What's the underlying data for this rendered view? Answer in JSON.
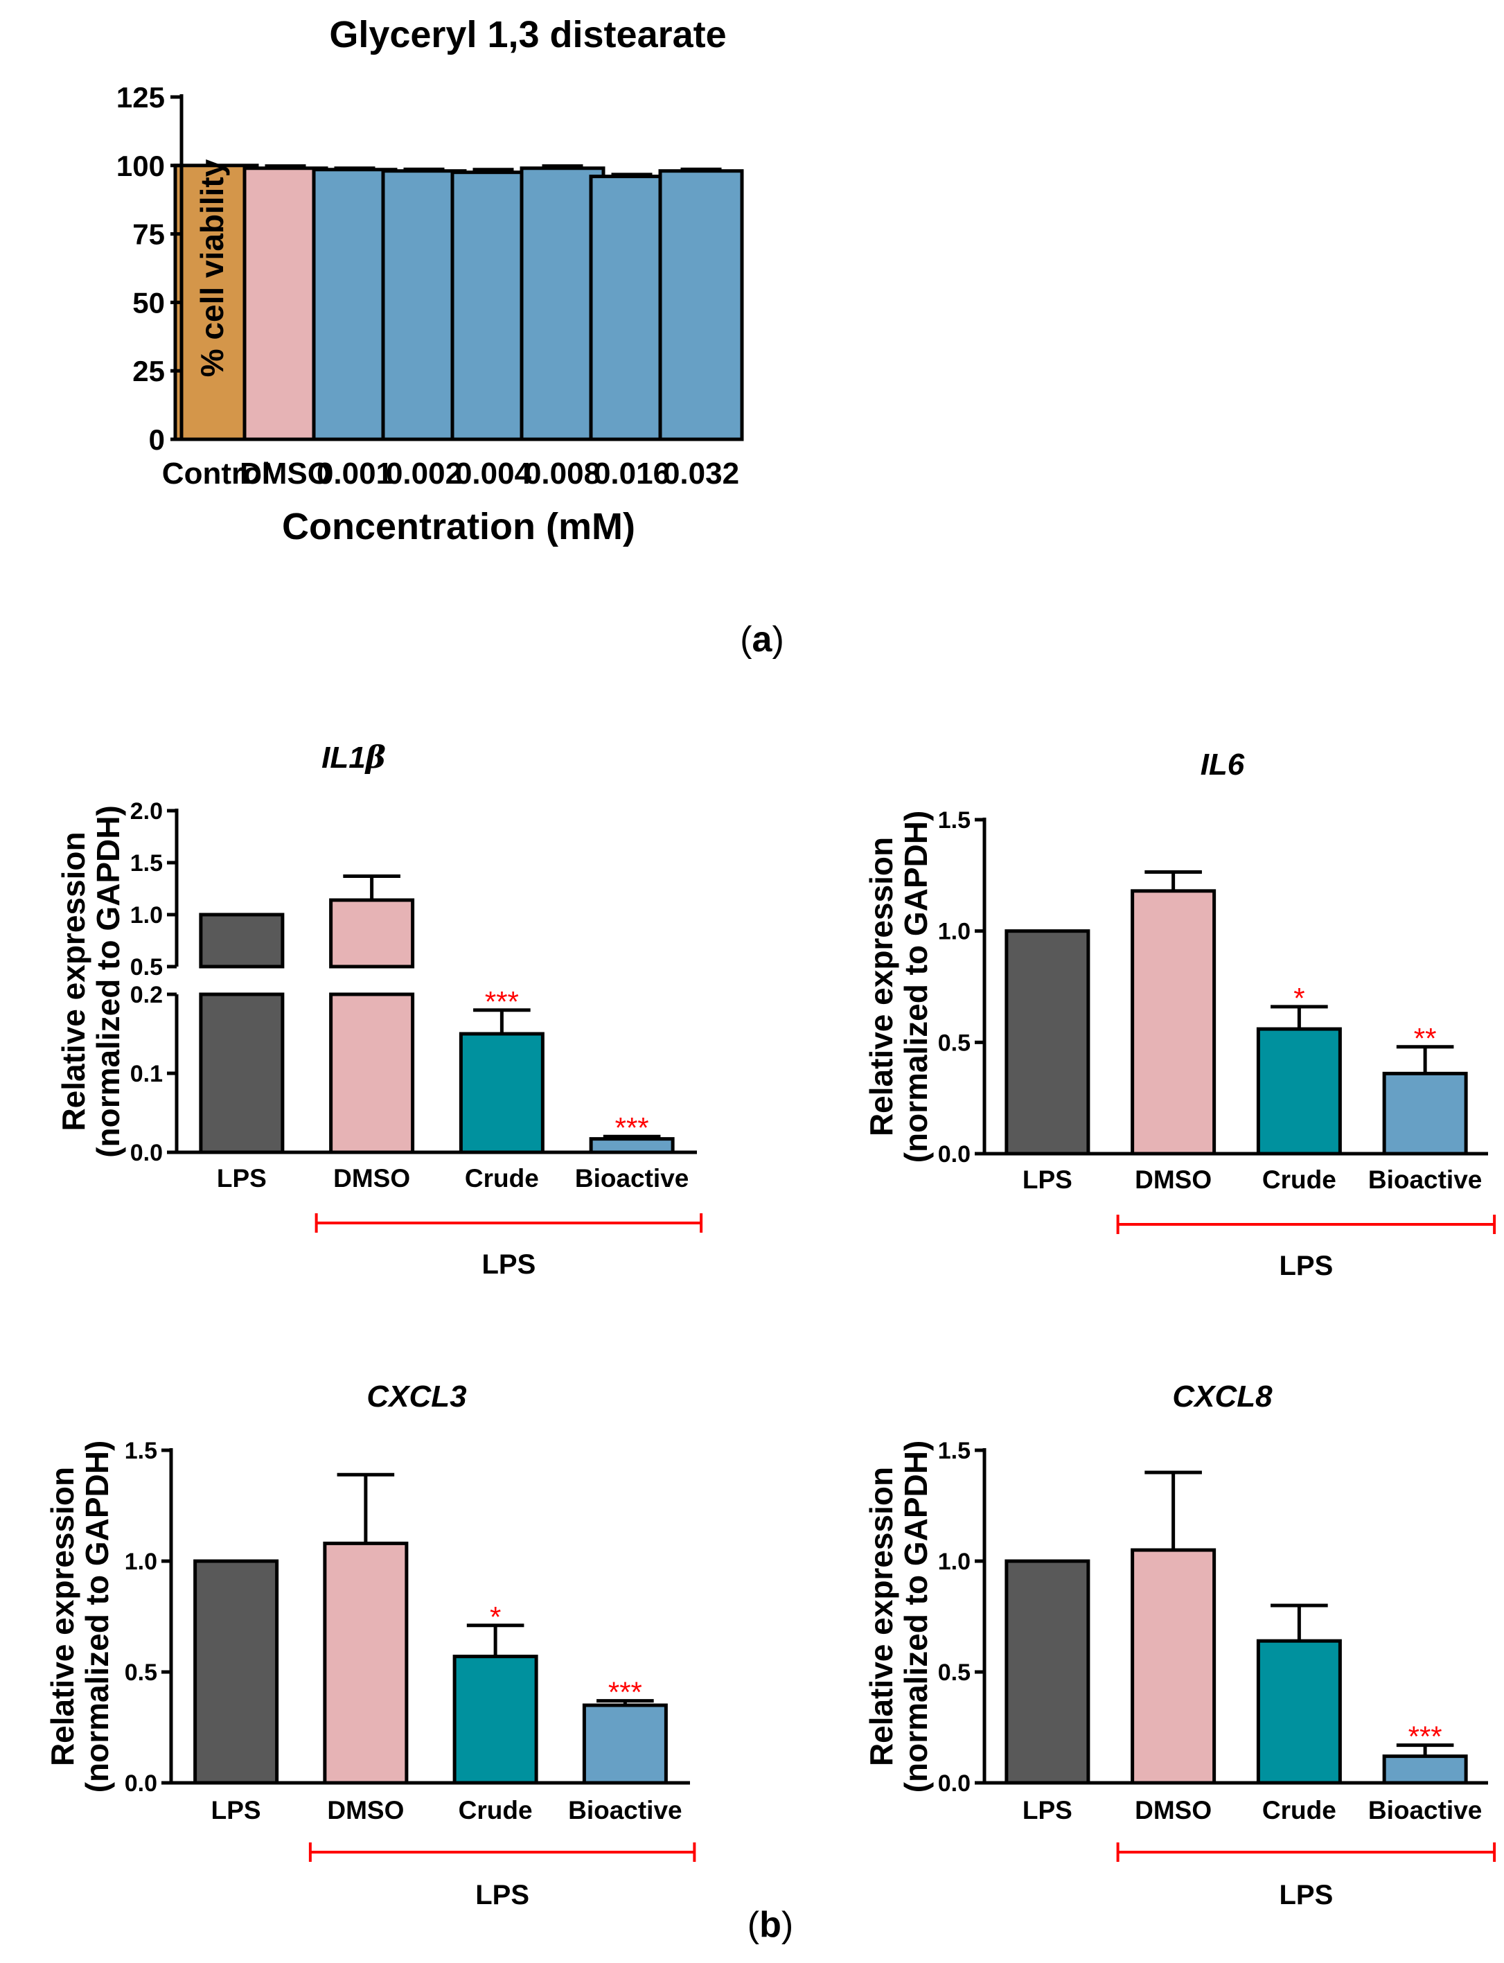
{
  "colors": {
    "control": "#d4964a",
    "dmso": "#e6b3b5",
    "treated_a": "#67a0c5",
    "lps": "#595959",
    "crude": "#00919e",
    "bioactive": "#67a0c5",
    "significance": "#ff0000",
    "bracket": "#ff0000"
  },
  "panel_labels": {
    "a": "a",
    "b": "b"
  },
  "chart_data": [
    {
      "id": "a",
      "type": "bar",
      "title": "Glyceryl 1,3 distearate",
      "xlabel": "Concentration (mM)",
      "ylabel": "% cell viability",
      "ylim": [
        0,
        125
      ],
      "yticks": [
        "0",
        "25",
        "50",
        "75",
        "100",
        "125"
      ],
      "categories": [
        "Control",
        "DMSO",
        "0.001",
        "0.002",
        "0.004",
        "0.008",
        "0.016",
        "0.032"
      ],
      "values": [
        100,
        99,
        98.5,
        98,
        97.5,
        99,
        96,
        98
      ],
      "errors": [
        0,
        0.8,
        0.5,
        0.6,
        1.0,
        0.8,
        0.7,
        0.6
      ],
      "grid": false
    },
    {
      "id": "il1b",
      "type": "bar",
      "title": "IL1",
      "title_symbol": "β",
      "ylabel": [
        "Relative expression",
        "(normalized to GAPDH)"
      ],
      "axis_break": {
        "lower": [
          0,
          0.2
        ],
        "upper": [
          0.5,
          2.0
        ]
      },
      "yticks_lower": [
        "0.0",
        "0.1",
        "0.2"
      ],
      "yticks_upper": [
        "0.5",
        "1.0",
        "1.5",
        "2.0"
      ],
      "categories": [
        "LPS",
        "DMSO",
        "Crude",
        "Bioactive"
      ],
      "values": [
        1.0,
        1.14,
        0.15,
        0.017
      ],
      "errors": [
        0,
        0.23,
        0.03,
        0.003
      ],
      "significance": [
        "",
        "",
        "***",
        "***"
      ],
      "bracket_label": "LPS",
      "grid": false
    },
    {
      "id": "il6",
      "type": "bar",
      "title": "IL6",
      "ylabel": [
        "Relative expression",
        "(normalized to GAPDH)"
      ],
      "ylim": [
        0,
        1.5
      ],
      "yticks": [
        "0.0",
        "0.5",
        "1.0",
        "1.5"
      ],
      "categories": [
        "LPS",
        "DMSO",
        "Crude",
        "Bioactive"
      ],
      "values": [
        1.0,
        1.18,
        0.56,
        0.36
      ],
      "errors": [
        0,
        0.085,
        0.1,
        0.12
      ],
      "significance": [
        "",
        "",
        "*",
        "**"
      ],
      "bracket_label": "LPS",
      "grid": false
    },
    {
      "id": "cxcl3",
      "type": "bar",
      "title": "CXCL3",
      "ylabel": [
        "Relative expression",
        "(normalized to GAPDH)"
      ],
      "ylim": [
        0,
        1.5
      ],
      "yticks": [
        "0.0",
        "0.5",
        "1.0",
        "1.5"
      ],
      "categories": [
        "LPS",
        "DMSO",
        "Crude",
        "Bioactive"
      ],
      "values": [
        1.0,
        1.08,
        0.57,
        0.35
      ],
      "errors": [
        0,
        0.31,
        0.14,
        0.02
      ],
      "significance": [
        "",
        "",
        "*",
        "***"
      ],
      "bracket_label": "LPS",
      "grid": false
    },
    {
      "id": "cxcl8",
      "type": "bar",
      "title": "CXCL8",
      "ylabel": [
        "Relative expression",
        "(normalized to GAPDH)"
      ],
      "ylim": [
        0,
        1.5
      ],
      "yticks": [
        "0.0",
        "0.5",
        "1.0",
        "1.5"
      ],
      "categories": [
        "LPS",
        "DMSO",
        "Crude",
        "Bioactive"
      ],
      "values": [
        1.0,
        1.05,
        0.64,
        0.12
      ],
      "errors": [
        0,
        0.35,
        0.16,
        0.05
      ],
      "significance": [
        "",
        "",
        "",
        "***"
      ],
      "bracket_label": "LPS",
      "grid": false
    }
  ]
}
